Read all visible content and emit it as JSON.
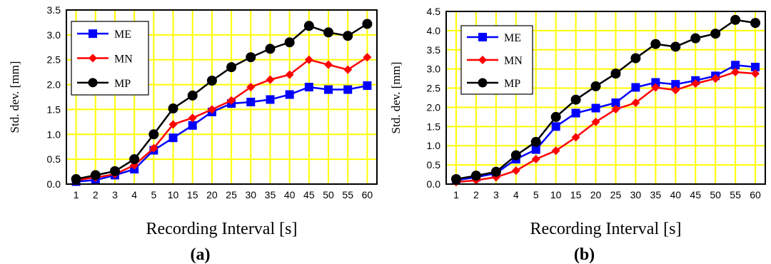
{
  "chart_data": [
    {
      "type": "line",
      "panel_label": "(a)",
      "xlabel": "Recording Interval    [s]",
      "ylabel": "Std. dev.   [mm]",
      "categories": [
        "1",
        "2",
        "3",
        "4",
        "5",
        "10",
        "15",
        "20",
        "25",
        "30",
        "35",
        "40",
        "45",
        "50",
        "55",
        "60"
      ],
      "y_ticks": [
        "0.0",
        "0.5",
        "1.0",
        "1.5",
        "2.0",
        "2.5",
        "3.0",
        "3.5"
      ],
      "ylim": [
        0,
        3.5
      ],
      "grid": true,
      "grid_color": "#ffff00",
      "legend_position": "top-left",
      "series": [
        {
          "name": "ME",
          "color": "#0000ff",
          "marker": "square",
          "values": [
            0.05,
            0.08,
            0.18,
            0.3,
            0.68,
            0.93,
            1.18,
            1.45,
            1.62,
            1.65,
            1.7,
            1.8,
            1.95,
            1.9,
            1.9,
            1.98
          ]
        },
        {
          "name": "MN",
          "color": "#ff0000",
          "marker": "diamond",
          "values": [
            0.08,
            0.13,
            0.2,
            0.38,
            0.72,
            1.2,
            1.33,
            1.5,
            1.68,
            1.95,
            2.1,
            2.2,
            2.5,
            2.4,
            2.3,
            2.55
          ]
        },
        {
          "name": "MP",
          "color": "#000000",
          "marker": "circle",
          "values": [
            0.1,
            0.18,
            0.26,
            0.5,
            1.0,
            1.52,
            1.78,
            2.08,
            2.35,
            2.55,
            2.72,
            2.85,
            3.18,
            3.05,
            2.98,
            3.22
          ]
        }
      ]
    },
    {
      "type": "line",
      "panel_label": "(b)",
      "xlabel": "Recording Interval    [s]",
      "ylabel": "Std. dev.   [mm]",
      "categories": [
        "1",
        "2",
        "3",
        "4",
        "5",
        "10",
        "15",
        "20",
        "25",
        "30",
        "35",
        "40",
        "45",
        "50",
        "55",
        "60"
      ],
      "y_ticks": [
        "0.0",
        "0.5",
        "1.0",
        "1.5",
        "2.0",
        "2.5",
        "3.0",
        "3.5",
        "4.0",
        "4.5"
      ],
      "ylim": [
        0,
        4.5
      ],
      "grid": true,
      "grid_color": "#ffff00",
      "legend_position": "top-left",
      "series": [
        {
          "name": "ME",
          "color": "#0000ff",
          "marker": "square",
          "values": [
            0.1,
            0.18,
            0.28,
            0.65,
            0.9,
            1.5,
            1.85,
            1.98,
            2.12,
            2.52,
            2.65,
            2.6,
            2.7,
            2.82,
            3.1,
            3.05
          ]
        },
        {
          "name": "MN",
          "color": "#ff0000",
          "marker": "diamond",
          "values": [
            0.05,
            0.1,
            0.18,
            0.35,
            0.65,
            0.87,
            1.22,
            1.62,
            1.95,
            2.12,
            2.52,
            2.45,
            2.62,
            2.75,
            2.92,
            2.88
          ]
        },
        {
          "name": "MP",
          "color": "#000000",
          "marker": "circle",
          "values": [
            0.13,
            0.22,
            0.32,
            0.75,
            1.1,
            1.75,
            2.2,
            2.55,
            2.88,
            3.28,
            3.65,
            3.58,
            3.8,
            3.92,
            4.28,
            4.2
          ]
        }
      ]
    }
  ]
}
